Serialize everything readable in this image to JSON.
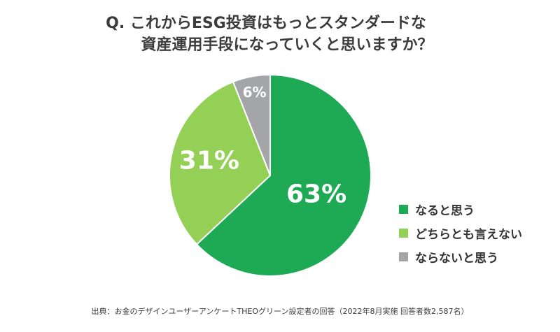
{
  "chart_data": {
    "type": "pie",
    "title_line1": "Q. これからESG投資はもっとスタンダードな",
    "title_line2": "資産運用手段になっていくと思いますか？",
    "categories": [
      "なると思う",
      "どちらとも言えない",
      "ならないと思う"
    ],
    "values": [
      63,
      31,
      6
    ],
    "labels": [
      "63%",
      "31%",
      "6%"
    ],
    "colors": [
      "#1eaa55",
      "#93d055",
      "#a3a5a8"
    ],
    "legend_position": "right"
  },
  "source": "出典：お金のデザインユーザーアンケートTHEOグリーン設定者の回答（2022年8月実施 回答者数2,587名）"
}
